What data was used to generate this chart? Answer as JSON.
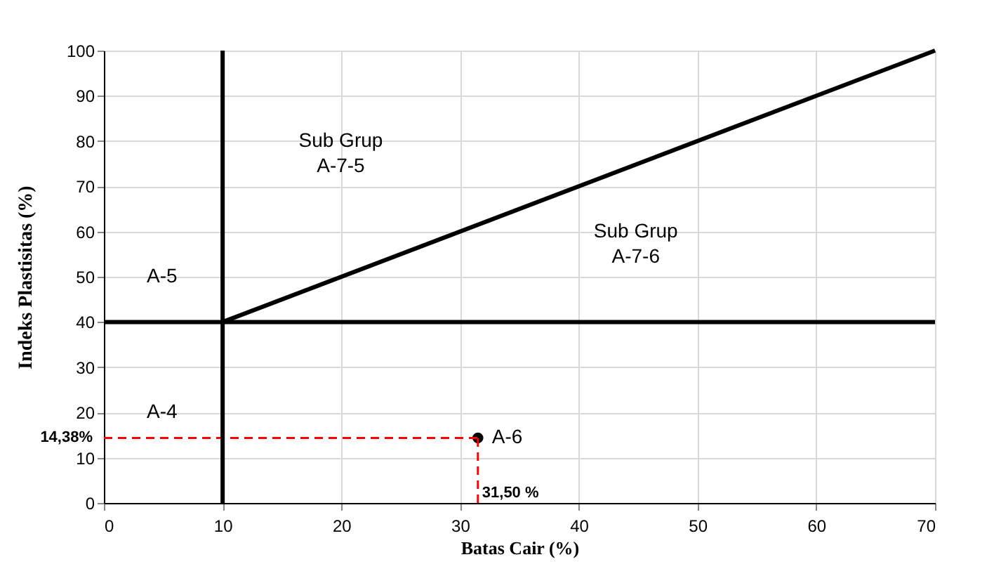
{
  "chart_data": {
    "type": "scatter",
    "xlabel": "Batas Cair (%)",
    "ylabel": "Indeks Plastisitas (%)",
    "xlim": [
      0,
      70
    ],
    "xticks": [
      0,
      10,
      20,
      30,
      40,
      50,
      60,
      70
    ],
    "ylim": [
      0,
      100
    ],
    "yticks": [
      0,
      10,
      20,
      30,
      40,
      50,
      60,
      70,
      80,
      90,
      100
    ],
    "grid": true,
    "series": [
      {
        "name": "A-6",
        "marker": "circle",
        "color": "#000000",
        "x": [
          31.5
        ],
        "values": [
          14.38
        ]
      },
      {
        "type": "line",
        "color": "#000000",
        "line_style": "solid",
        "x": [
          10,
          70
        ],
        "values": [
          40,
          100
        ]
      },
      {
        "type": "line",
        "color": "#ff0000",
        "line_style": "dashed",
        "x": [
          0,
          31.5
        ],
        "values": [
          14.38,
          14.38
        ]
      },
      {
        "type": "line",
        "color": "#ff0000",
        "line_style": "dashed",
        "x": [
          31.5,
          31.5
        ],
        "values": [
          0,
          14.38
        ]
      }
    ],
    "ref_lines": [
      {
        "axis": "x",
        "value": 10,
        "color": "#000000"
      },
      {
        "axis": "y",
        "value": 40,
        "color": "#000000"
      }
    ],
    "annotations": [
      {
        "text": "14,38%",
        "x": 0,
        "y": 14.38
      },
      {
        "text": "31,50 %",
        "x": 31.5,
        "y": 0
      },
      "A-4",
      "A-5",
      "Sub Grup\nA-7-5",
      "Sub Grup\nA-7-6"
    ]
  }
}
